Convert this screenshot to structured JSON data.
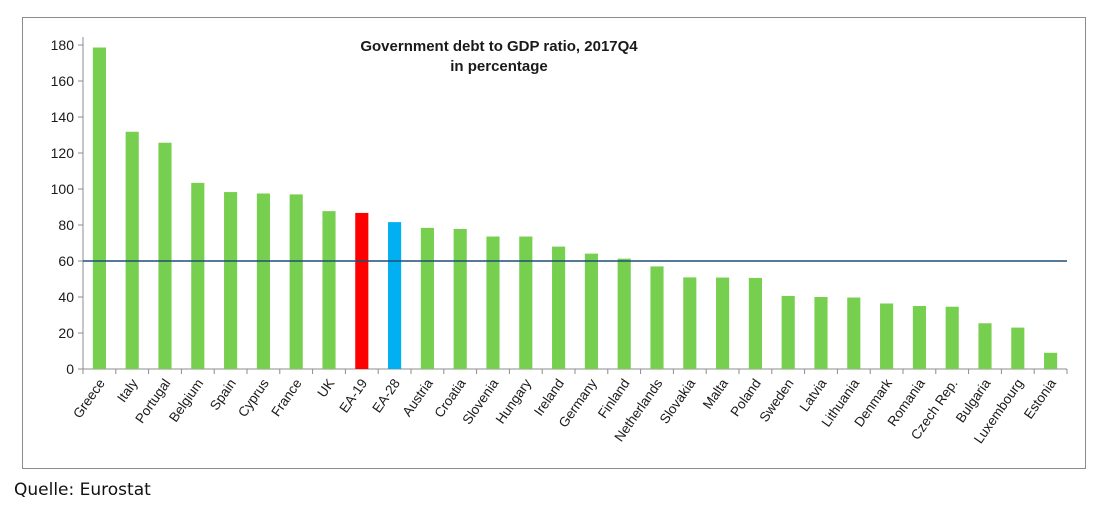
{
  "chart_data": {
    "type": "bar",
    "title": "Government debt to GDP ratio, 2017Q4",
    "subtitle": "in percentage",
    "xlabel": "",
    "ylabel": "",
    "ylim": [
      0,
      180
    ],
    "yticks": [
      0,
      20,
      40,
      60,
      80,
      100,
      120,
      140,
      160,
      180
    ],
    "grid": false,
    "reference_line": 60,
    "categories": [
      "Greece",
      "Italy",
      "Portugal",
      "Belgium",
      "Spain",
      "Cyprus",
      "France",
      "UK",
      "EA-19",
      "EA-28",
      "Austria",
      "Croatia",
      "Slovenia",
      "Hungary",
      "Ireland",
      "Germany",
      "Finland",
      "Netherlands",
      "Slovakia",
      "Malta",
      "Poland",
      "Sweden",
      "Latvia",
      "Lithuania",
      "Denmark",
      "Romania",
      "Czech Rep.",
      "Bulgaria",
      "Luxembourg",
      "Estonia"
    ],
    "values": [
      178.6,
      131.8,
      125.7,
      103.4,
      98.3,
      97.5,
      97.0,
      87.7,
      86.7,
      81.6,
      78.4,
      77.8,
      73.6,
      73.6,
      68.0,
      64.1,
      61.3,
      57.0,
      50.9,
      50.8,
      50.6,
      40.6,
      40.0,
      39.7,
      36.4,
      35.0,
      34.6,
      25.4,
      23.0,
      9.0
    ],
    "colors": {
      "default": "#77cf50",
      "EA-19": "#ff0000",
      "EA-28": "#00b0f0",
      "reference_line": "#1f4e79",
      "axis": "#8c8c8c"
    }
  },
  "source": "Quelle: Eurostat"
}
